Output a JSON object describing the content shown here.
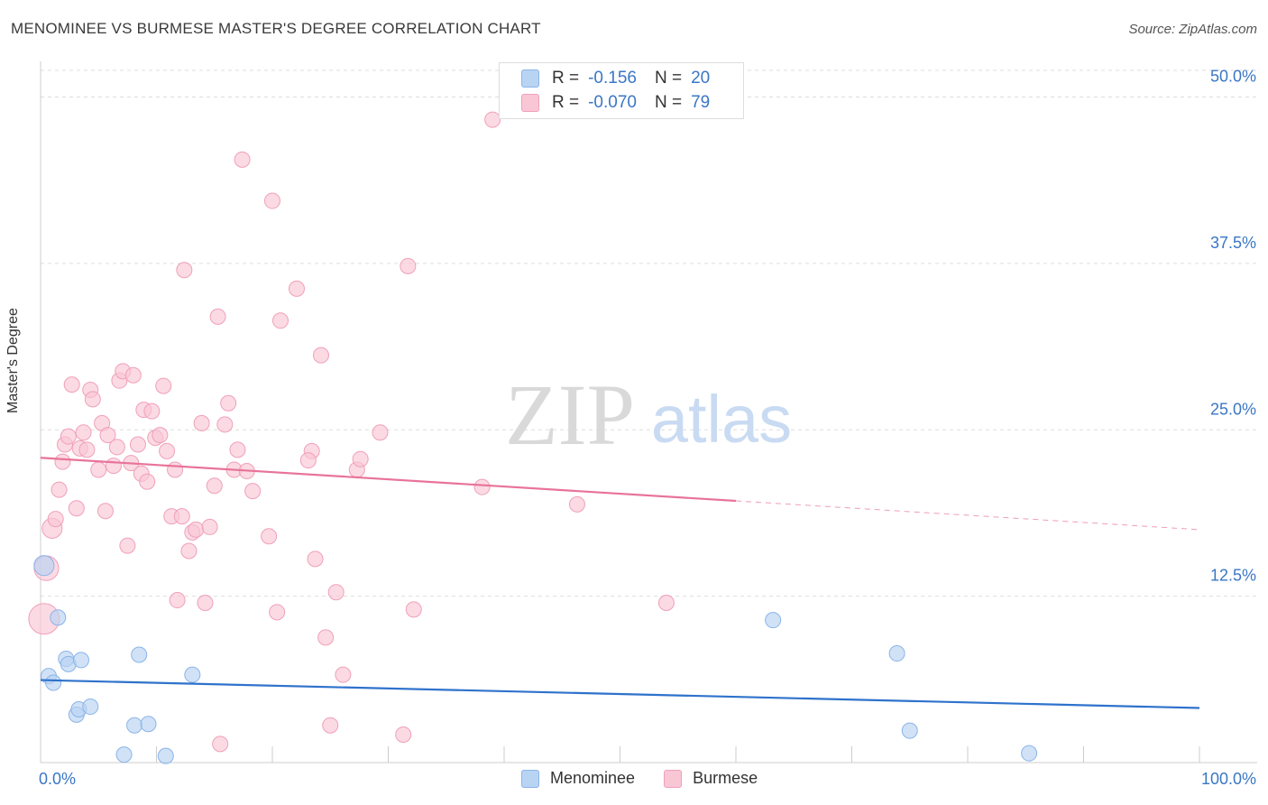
{
  "title": "MENOMINEE VS BURMESE MASTER'S DEGREE CORRELATION CHART",
  "source": "Source: ZipAtlas.com",
  "watermark": {
    "zip": "ZIP",
    "atlas": "atlas"
  },
  "legend": {
    "rows": [
      {
        "r_label": "R =",
        "r_value": "-0.156",
        "n_label": "N =",
        "n_value": "20"
      },
      {
        "r_label": "R =",
        "r_value": "-0.070",
        "n_label": "N =",
        "n_value": "79"
      }
    ]
  },
  "bottom_legend": {
    "series1": "Menominee",
    "series2": "Burmese"
  },
  "colors": {
    "blue_fill": "#b9d3f3",
    "blue_stroke": "#8ab4e8",
    "blue_line": "#2f72cc",
    "pink_fill": "#f9c6d6",
    "pink_stroke": "#f0a0ba",
    "pink_line": "#e8739a",
    "tick_text": "#3a77c5",
    "grid": "#dddddd"
  },
  "chart_data": {
    "type": "scatter",
    "title": "MENOMINEE VS BURMESE MASTER'S DEGREE CORRELATION CHART",
    "xlabel": "",
    "ylabel": "Master's Degree",
    "xlim": [
      0,
      100
    ],
    "ylim": [
      0,
      52
    ],
    "x_tick_labels": [
      "0.0%",
      "100.0%"
    ],
    "y_ticks": [
      {
        "value": 12.5,
        "label": "12.5%"
      },
      {
        "value": 25.0,
        "label": "25.0%"
      },
      {
        "value": 37.5,
        "label": "37.5%"
      },
      {
        "value": 50.0,
        "label": "50.0%"
      }
    ],
    "series": [
      {
        "name": "Menominee",
        "r": -0.156,
        "n": 20,
        "trend": {
          "x0": 0,
          "y0": 6.2,
          "x1": 100,
          "y1": 4.1,
          "solid_until": 100
        },
        "points": [
          {
            "x": 0.3,
            "y": 14.8,
            "s": 1.3
          },
          {
            "x": 1.5,
            "y": 10.9,
            "s": 1
          },
          {
            "x": 0.7,
            "y": 6.5,
            "s": 1
          },
          {
            "x": 1.1,
            "y": 6.0,
            "s": 1
          },
          {
            "x": 2.2,
            "y": 7.8,
            "s": 1
          },
          {
            "x": 2.4,
            "y": 7.4,
            "s": 1
          },
          {
            "x": 3.5,
            "y": 7.7,
            "s": 1
          },
          {
            "x": 3.1,
            "y": 3.6,
            "s": 1
          },
          {
            "x": 3.3,
            "y": 4.0,
            "s": 1
          },
          {
            "x": 4.3,
            "y": 4.2,
            "s": 1
          },
          {
            "x": 8.5,
            "y": 8.1,
            "s": 1
          },
          {
            "x": 8.1,
            "y": 2.8,
            "s": 1
          },
          {
            "x": 9.3,
            "y": 2.9,
            "s": 1
          },
          {
            "x": 13.1,
            "y": 6.6,
            "s": 1
          },
          {
            "x": 7.2,
            "y": 0.6,
            "s": 1
          },
          {
            "x": 10.8,
            "y": 0.5,
            "s": 1
          },
          {
            "x": 63.2,
            "y": 10.7,
            "s": 1
          },
          {
            "x": 73.9,
            "y": 8.2,
            "s": 1
          },
          {
            "x": 75.0,
            "y": 2.4,
            "s": 1
          },
          {
            "x": 85.3,
            "y": 0.7,
            "s": 1
          }
        ]
      },
      {
        "name": "Burmese",
        "r": -0.07,
        "n": 79,
        "trend": {
          "x0": 0,
          "y0": 22.9,
          "x1": 100,
          "y1": 17.5,
          "solid_until": 60
        },
        "points": [
          {
            "x": 0.3,
            "y": 10.8,
            "s": 2.0
          },
          {
            "x": 0.5,
            "y": 14.6,
            "s": 1.6
          },
          {
            "x": 1.0,
            "y": 17.6,
            "s": 1.3
          },
          {
            "x": 1.3,
            "y": 18.3,
            "s": 1
          },
          {
            "x": 1.6,
            "y": 20.5,
            "s": 1
          },
          {
            "x": 1.9,
            "y": 22.6,
            "s": 1
          },
          {
            "x": 2.1,
            "y": 23.9,
            "s": 1
          },
          {
            "x": 2.4,
            "y": 24.5,
            "s": 1
          },
          {
            "x": 2.7,
            "y": 28.4,
            "s": 1
          },
          {
            "x": 3.1,
            "y": 19.1,
            "s": 1
          },
          {
            "x": 3.4,
            "y": 23.6,
            "s": 1
          },
          {
            "x": 3.7,
            "y": 24.8,
            "s": 1
          },
          {
            "x": 4.0,
            "y": 23.5,
            "s": 1
          },
          {
            "x": 4.3,
            "y": 28.0,
            "s": 1
          },
          {
            "x": 4.5,
            "y": 27.3,
            "s": 1
          },
          {
            "x": 5.0,
            "y": 22.0,
            "s": 1
          },
          {
            "x": 5.3,
            "y": 25.5,
            "s": 1
          },
          {
            "x": 5.6,
            "y": 18.9,
            "s": 1
          },
          {
            "x": 5.8,
            "y": 24.6,
            "s": 1
          },
          {
            "x": 6.3,
            "y": 22.3,
            "s": 1
          },
          {
            "x": 6.6,
            "y": 23.7,
            "s": 1
          },
          {
            "x": 6.8,
            "y": 28.7,
            "s": 1
          },
          {
            "x": 7.1,
            "y": 29.4,
            "s": 1
          },
          {
            "x": 7.5,
            "y": 16.3,
            "s": 1
          },
          {
            "x": 7.8,
            "y": 22.5,
            "s": 1
          },
          {
            "x": 8.0,
            "y": 29.1,
            "s": 1
          },
          {
            "x": 8.4,
            "y": 23.9,
            "s": 1
          },
          {
            "x": 8.7,
            "y": 21.7,
            "s": 1
          },
          {
            "x": 8.9,
            "y": 26.5,
            "s": 1
          },
          {
            "x": 9.2,
            "y": 21.1,
            "s": 1
          },
          {
            "x": 9.6,
            "y": 26.4,
            "s": 1
          },
          {
            "x": 9.9,
            "y": 24.4,
            "s": 1
          },
          {
            "x": 10.3,
            "y": 24.6,
            "s": 1
          },
          {
            "x": 10.6,
            "y": 28.3,
            "s": 1
          },
          {
            "x": 10.9,
            "y": 23.4,
            "s": 1
          },
          {
            "x": 11.3,
            "y": 18.5,
            "s": 1
          },
          {
            "x": 11.6,
            "y": 22.0,
            "s": 1
          },
          {
            "x": 11.8,
            "y": 12.2,
            "s": 1
          },
          {
            "x": 12.2,
            "y": 18.5,
            "s": 1
          },
          {
            "x": 12.4,
            "y": 37.0,
            "s": 1
          },
          {
            "x": 12.8,
            "y": 15.9,
            "s": 1
          },
          {
            "x": 13.1,
            "y": 17.3,
            "s": 1
          },
          {
            "x": 13.4,
            "y": 17.5,
            "s": 1
          },
          {
            "x": 13.9,
            "y": 25.5,
            "s": 1
          },
          {
            "x": 14.2,
            "y": 12.0,
            "s": 1
          },
          {
            "x": 14.6,
            "y": 17.7,
            "s": 1
          },
          {
            "x": 15.0,
            "y": 20.8,
            "s": 1
          },
          {
            "x": 15.3,
            "y": 33.5,
            "s": 1
          },
          {
            "x": 15.5,
            "y": 1.4,
            "s": 1
          },
          {
            "x": 15.9,
            "y": 25.4,
            "s": 1
          },
          {
            "x": 16.2,
            "y": 27.0,
            "s": 1
          },
          {
            "x": 16.7,
            "y": 22.0,
            "s": 1
          },
          {
            "x": 17.0,
            "y": 23.5,
            "s": 1
          },
          {
            "x": 17.4,
            "y": 45.3,
            "s": 1
          },
          {
            "x": 17.8,
            "y": 21.9,
            "s": 1
          },
          {
            "x": 18.3,
            "y": 20.4,
            "s": 1
          },
          {
            "x": 19.7,
            "y": 17.0,
            "s": 1
          },
          {
            "x": 20.0,
            "y": 42.2,
            "s": 1
          },
          {
            "x": 20.7,
            "y": 33.2,
            "s": 1
          },
          {
            "x": 20.4,
            "y": 11.3,
            "s": 1
          },
          {
            "x": 22.1,
            "y": 35.6,
            "s": 1
          },
          {
            "x": 23.4,
            "y": 23.4,
            "s": 1
          },
          {
            "x": 23.1,
            "y": 22.7,
            "s": 1
          },
          {
            "x": 23.7,
            "y": 15.3,
            "s": 1
          },
          {
            "x": 24.2,
            "y": 30.6,
            "s": 1
          },
          {
            "x": 24.6,
            "y": 9.4,
            "s": 1
          },
          {
            "x": 25.0,
            "y": 2.8,
            "s": 1
          },
          {
            "x": 25.5,
            "y": 12.8,
            "s": 1
          },
          {
            "x": 26.1,
            "y": 6.6,
            "s": 1
          },
          {
            "x": 27.3,
            "y": 22.0,
            "s": 1
          },
          {
            "x": 27.6,
            "y": 22.8,
            "s": 1
          },
          {
            "x": 29.3,
            "y": 24.8,
            "s": 1
          },
          {
            "x": 31.3,
            "y": 2.1,
            "s": 1
          },
          {
            "x": 31.7,
            "y": 37.3,
            "s": 1
          },
          {
            "x": 32.2,
            "y": 11.5,
            "s": 1
          },
          {
            "x": 38.1,
            "y": 20.7,
            "s": 1
          },
          {
            "x": 39.0,
            "y": 48.3,
            "s": 1
          },
          {
            "x": 46.3,
            "y": 19.4,
            "s": 1
          },
          {
            "x": 54.0,
            "y": 12.0,
            "s": 1
          }
        ]
      }
    ]
  }
}
